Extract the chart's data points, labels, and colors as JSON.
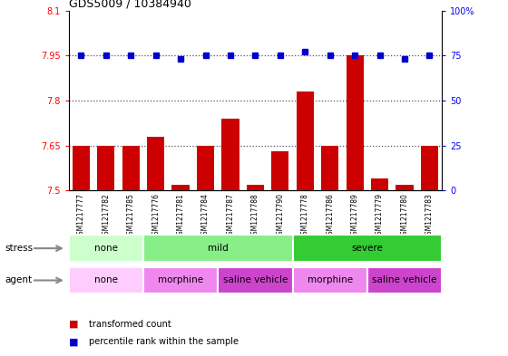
{
  "title": "GDS5009 / 10384940",
  "samples": [
    "GSM1217777",
    "GSM1217782",
    "GSM1217785",
    "GSM1217776",
    "GSM1217781",
    "GSM1217784",
    "GSM1217787",
    "GSM1217788",
    "GSM1217790",
    "GSM1217778",
    "GSM1217786",
    "GSM1217789",
    "GSM1217779",
    "GSM1217780",
    "GSM1217783"
  ],
  "transformed_count": [
    7.65,
    7.65,
    7.65,
    7.68,
    7.52,
    7.65,
    7.74,
    7.52,
    7.63,
    7.83,
    7.65,
    7.95,
    7.54,
    7.52,
    7.65
  ],
  "percentile_rank": [
    75,
    75,
    75,
    75,
    73,
    75,
    75,
    75,
    75,
    77,
    75,
    75,
    75,
    73,
    75
  ],
  "ylim_left": [
    7.5,
    8.1
  ],
  "ylim_right": [
    0,
    100
  ],
  "yticks_left": [
    7.5,
    7.65,
    7.8,
    7.95,
    8.1
  ],
  "yticks_right": [
    0,
    25,
    50,
    75,
    100
  ],
  "ytick_labels_left": [
    "7.5",
    "7.65",
    "7.8",
    "7.95",
    "8.1"
  ],
  "ytick_labels_right": [
    "0",
    "25",
    "50",
    "75",
    "100%"
  ],
  "bar_color": "#cc0000",
  "dot_color": "#0000cc",
  "stress_groups": [
    {
      "label": "none",
      "start": 0,
      "end": 3,
      "color": "#ccffcc"
    },
    {
      "label": "mild",
      "start": 3,
      "end": 9,
      "color": "#88ee88"
    },
    {
      "label": "severe",
      "start": 9,
      "end": 15,
      "color": "#33cc33"
    }
  ],
  "agent_groups": [
    {
      "label": "none",
      "start": 0,
      "end": 3,
      "color": "#ffccff"
    },
    {
      "label": "morphine",
      "start": 3,
      "end": 6,
      "color": "#ee88ee"
    },
    {
      "label": "saline vehicle",
      "start": 6,
      "end": 9,
      "color": "#cc44cc"
    },
    {
      "label": "morphine",
      "start": 9,
      "end": 12,
      "color": "#ee88ee"
    },
    {
      "label": "saline vehicle",
      "start": 12,
      "end": 15,
      "color": "#cc44cc"
    }
  ],
  "stress_label": "stress",
  "agent_label": "agent",
  "legend_items": [
    {
      "label": "transformed count",
      "color": "#cc0000"
    },
    {
      "label": "percentile rank within the sample",
      "color": "#0000cc"
    }
  ],
  "dotted_line_color": "#555555",
  "grid_lines": [
    7.65,
    7.8,
    7.95
  ],
  "bar_bottom": 7.5,
  "bg_color": "#ffffff",
  "xticklabel_bg": "#cccccc"
}
